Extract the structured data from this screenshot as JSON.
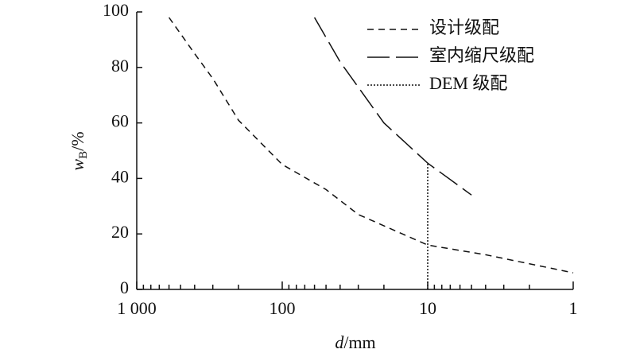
{
  "chart_data": {
    "type": "line",
    "xlabel": {
      "symbol": "d",
      "unit": "/mm"
    },
    "ylabel": {
      "symbol": "w",
      "subscript": "B",
      "unit": "/%"
    },
    "x_scale": "log",
    "xlim": [
      1000,
      1
    ],
    "xticks": [
      {
        "value": 1000,
        "label": "1 000"
      },
      100,
      10,
      1
    ],
    "ylim": [
      0,
      100
    ],
    "yticks": [
      0,
      20,
      40,
      60,
      80,
      100
    ],
    "legend": "upper right",
    "series": [
      {
        "name": "设计级配",
        "color": "#111111",
        "dash": "8 6",
        "x": [
          600,
          400,
          300,
          200,
          100,
          50,
          30,
          10,
          4,
          1
        ],
        "values": [
          98,
          85,
          76,
          61,
          45,
          36,
          27,
          16,
          12.5,
          6
        ]
      },
      {
        "name": "室内缩尺级配",
        "color": "#111111",
        "dash": "28 8",
        "x": [
          60,
          40,
          20,
          10,
          5
        ],
        "values": [
          98,
          82,
          60,
          45.5,
          34
        ]
      },
      {
        "name": "DEM 级配",
        "color": "#111111",
        "dash": "2 2",
        "x": [
          10,
          10
        ],
        "values": [
          0,
          45.5
        ]
      }
    ]
  }
}
